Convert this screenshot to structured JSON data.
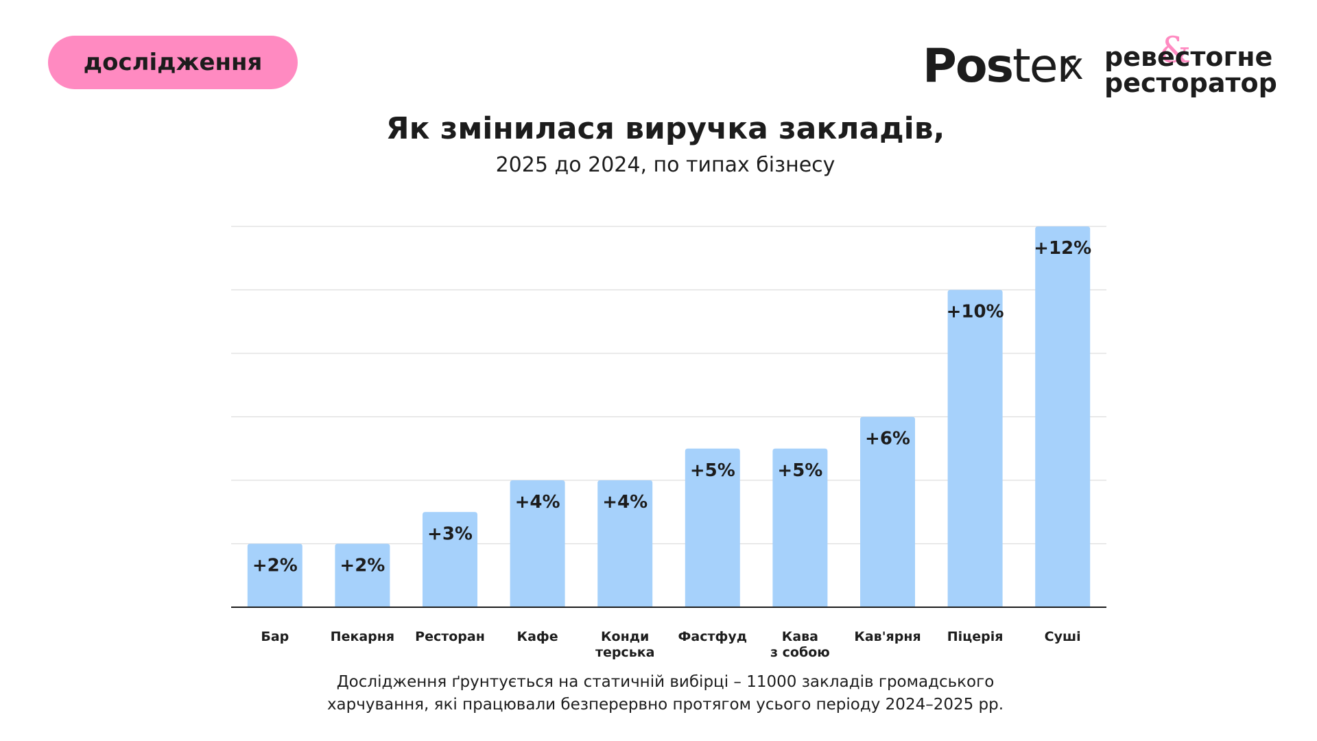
{
  "badge": {
    "label": "дослідження"
  },
  "logos": {
    "poster_bold": "Pos",
    "poster_light": "ter",
    "separator": "x",
    "partner_line1": "ревеcтогне",
    "partner_line2": "ресторатор",
    "partner_mark": "&"
  },
  "colors": {
    "bar": "#a6d1fb",
    "badge": "#ff8ac1",
    "grid": "#dddddd",
    "axis": "#1c1c1c",
    "text": "#1c1c1c"
  },
  "chart_data": {
    "type": "bar",
    "title": "Як змінилася виручка закладів,",
    "subtitle": "2025 до 2024, по типах бізнесу",
    "categories": [
      "Бар",
      "Пекарня",
      "Ресторан",
      "Кафе",
      "Конди терська",
      "Фастфуд",
      "Кава з собою",
      "Кав'ярня",
      "Піцерія",
      "Суші"
    ],
    "category_lines": [
      [
        "Бар"
      ],
      [
        "Пекарня"
      ],
      [
        "Ресторан"
      ],
      [
        "Кафе"
      ],
      [
        "Конди",
        "терська"
      ],
      [
        "Фастфуд"
      ],
      [
        "Кава",
        "з собою"
      ],
      [
        "Кав'ярня"
      ],
      [
        "Піцерія"
      ],
      [
        "Суші"
      ]
    ],
    "values": [
      2,
      2,
      3,
      4,
      4,
      5,
      5,
      6,
      10,
      12
    ],
    "value_labels": [
      "+2%",
      "+2%",
      "+3%",
      "+4%",
      "+4%",
      "+5%",
      "+5%",
      "+6%",
      "+10%",
      "+12%"
    ],
    "ylim": [
      0,
      12
    ],
    "grid": true,
    "xlabel": "",
    "ylabel": ""
  },
  "footnote": {
    "line1": "Дослідження ґрунтується на статичній вибірці – 11000 закладів громадського",
    "line2": "харчування, які працювали безперервно протягом усього періоду 2024–2025 рр."
  }
}
